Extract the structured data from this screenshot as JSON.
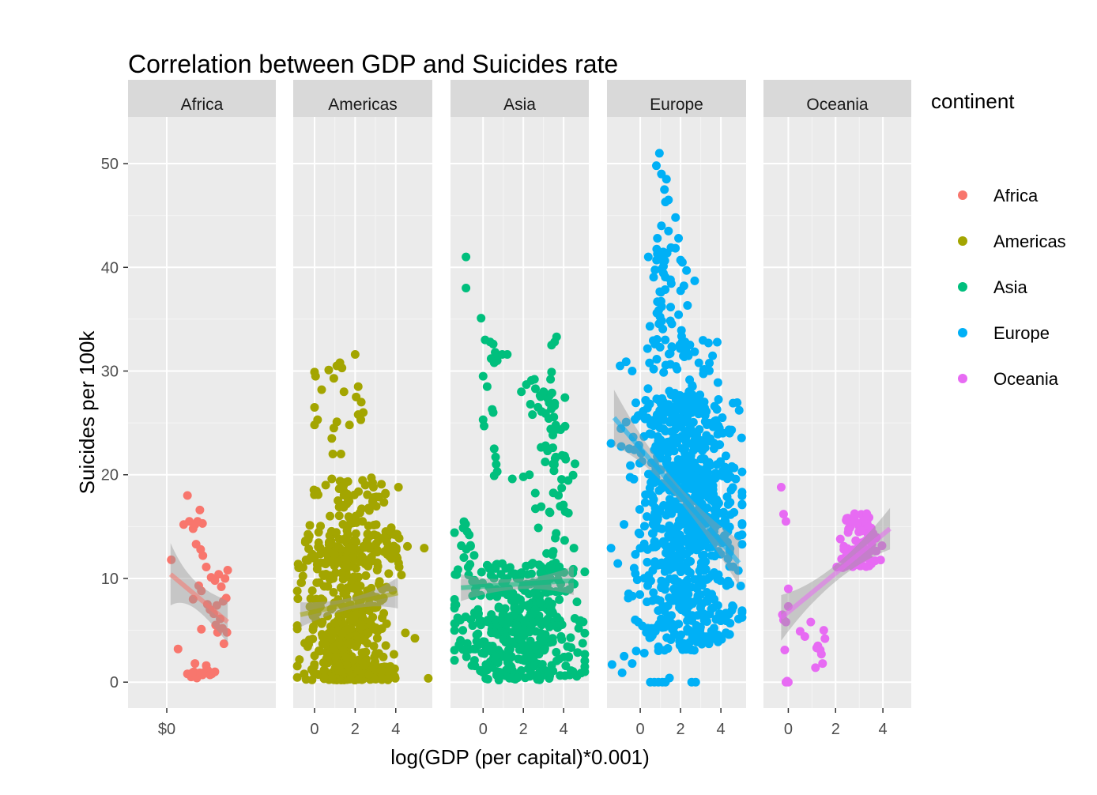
{
  "chart_data": {
    "type": "scatter",
    "title": "Correlation between GDP and Suicides rate",
    "xlabel": "log(GDP (per capital)*0.001)",
    "ylabel": "Suicides per 100k",
    "ylim": [
      -2.5,
      54.5
    ],
    "y_ticks": [
      0,
      10,
      20,
      30,
      40,
      50
    ],
    "grid": true,
    "legend": {
      "title": "continent",
      "position": "right"
    },
    "panels": [
      {
        "name": "Africa",
        "color": "#F8766D",
        "xlim": [
          -1.03,
          2.9
        ],
        "x_ticks": [
          {
            "value": 0,
            "label": "$0"
          }
        ],
        "trend": {
          "x": [
            0.1,
            1.62
          ],
          "y": [
            10.4,
            5.8
          ],
          "band_halfwidth_ends": [
            3.0,
            2.0
          ],
          "band_halfwidth_mid": 1.3
        },
        "points": [
          [
            0.12,
            11.8
          ],
          [
            0.3,
            3.2
          ],
          [
            0.45,
            15.2
          ],
          [
            0.55,
            18.0
          ],
          [
            0.6,
            15.5
          ],
          [
            0.7,
            14.8
          ],
          [
            0.75,
            15.2
          ],
          [
            0.82,
            15.5
          ],
          [
            0.88,
            16.6
          ],
          [
            0.95,
            15.3
          ],
          [
            0.78,
            13.3
          ],
          [
            0.9,
            12.8
          ],
          [
            0.96,
            12.2
          ],
          [
            0.85,
            9.3
          ],
          [
            0.92,
            8.8
          ],
          [
            0.7,
            8.0
          ],
          [
            1.05,
            11.1
          ],
          [
            1.18,
            10.1
          ],
          [
            1.28,
            9.8
          ],
          [
            1.38,
            10.4
          ],
          [
            1.45,
            9.2
          ],
          [
            1.55,
            10.0
          ],
          [
            1.62,
            10.8
          ],
          [
            1.08,
            7.5
          ],
          [
            1.15,
            7.0
          ],
          [
            1.25,
            6.6
          ],
          [
            1.33,
            7.4
          ],
          [
            1.42,
            6.1
          ],
          [
            1.5,
            7.8
          ],
          [
            1.58,
            8.1
          ],
          [
            1.3,
            5.5
          ],
          [
            1.48,
            5.2
          ],
          [
            1.6,
            4.8
          ],
          [
            1.52,
            3.7
          ],
          [
            0.92,
            5.1
          ],
          [
            1.35,
            4.8
          ],
          [
            0.55,
            0.8
          ],
          [
            0.65,
            0.5
          ],
          [
            0.72,
            1.0
          ],
          [
            0.8,
            0.4
          ],
          [
            0.88,
            0.9
          ],
          [
            0.95,
            0.7
          ],
          [
            1.02,
            1.0
          ],
          [
            1.1,
            1.1
          ],
          [
            1.2,
            0.8
          ],
          [
            1.28,
            1.0
          ],
          [
            0.75,
            1.8
          ],
          [
            1.05,
            1.6
          ],
          [
            0.68,
            0.9
          ],
          [
            1.15,
            0.7
          ]
        ]
      },
      {
        "name": "Americas",
        "color": "#A3A500",
        "xlim": [
          -1.05,
          5.8
        ],
        "x_ticks": [
          {
            "value": 0,
            "label": "0"
          },
          {
            "value": 2,
            "label": "2"
          },
          {
            "value": 4,
            "label": "4"
          }
        ],
        "trend": {
          "x": [
            -0.7,
            4.1
          ],
          "y": [
            6.5,
            8.6
          ],
          "band_halfwidth_ends": [
            1.2,
            1.5
          ],
          "band_halfwidth_mid": 0.55
        },
        "cloud": [
          {
            "cx": 1.8,
            "sx": 1.05,
            "y0": 0.2,
            "y1": 13.5,
            "n": 470,
            "skew": 1.6
          },
          {
            "cx": 1.8,
            "sx": 1.1,
            "y0": 11.5,
            "y1": 19.5,
            "n": 110,
            "skew": 1.0
          },
          {
            "cx": -0.2,
            "sx": 0.5,
            "y0": 5.0,
            "y1": 16.0,
            "n": 30,
            "skew": 1.0
          },
          {
            "cx": 4.0,
            "sx": 0.15,
            "y0": 11.0,
            "y1": 15.0,
            "n": 20,
            "skew": 1.0
          }
        ],
        "points": [
          [
            0.0,
            29.9
          ],
          [
            0.05,
            29.5
          ],
          [
            0.0,
            26.5
          ],
          [
            0.0,
            24.8
          ],
          [
            0.15,
            25.3
          ],
          [
            0.35,
            28.2
          ],
          [
            0.7,
            30.1
          ],
          [
            0.95,
            29.3
          ],
          [
            1.1,
            30.5
          ],
          [
            1.25,
            30.8
          ],
          [
            1.35,
            30.3
          ],
          [
            1.45,
            28.0
          ],
          [
            2.0,
            31.6
          ],
          [
            2.15,
            28.5
          ],
          [
            2.05,
            27.5
          ],
          [
            2.3,
            27.0
          ],
          [
            2.4,
            26.0
          ],
          [
            2.28,
            25.3
          ],
          [
            2.15,
            25.8
          ],
          [
            1.72,
            24.8
          ],
          [
            1.1,
            25.1
          ],
          [
            0.95,
            24.5
          ],
          [
            0.85,
            23.5
          ],
          [
            0.9,
            22.0
          ],
          [
            1.3,
            22.0
          ],
          [
            0.55,
            19.0
          ],
          [
            0.85,
            19.6
          ],
          [
            2.8,
            19.7
          ],
          [
            2.9,
            18.8
          ],
          [
            2.5,
            19.0
          ]
        ]
      },
      {
        "name": "Asia",
        "color": "#00BF7D",
        "xlim": [
          -1.62,
          5.25
        ],
        "x_ticks": [
          {
            "value": 0,
            "label": "0"
          },
          {
            "value": 2,
            "label": "2"
          },
          {
            "value": 4,
            "label": "4"
          }
        ],
        "trend": {
          "x": [
            -1.1,
            4.5
          ],
          "y": [
            9.1,
            9.8
          ],
          "band_halfwidth_ends": [
            1.3,
            1.4
          ],
          "band_halfwidth_mid": 0.5
        },
        "cloud": [
          {
            "cx": 1.7,
            "sx": 1.6,
            "y0": 0.2,
            "y1": 6.0,
            "n": 260,
            "skew": 1.0
          },
          {
            "cx": 1.7,
            "sx": 1.6,
            "y0": 5.5,
            "y1": 11.5,
            "n": 200,
            "skew": 1.0
          },
          {
            "cx": 3.6,
            "sx": 0.45,
            "y0": 11.5,
            "y1": 28.0,
            "n": 55,
            "skew": 1.0
          },
          {
            "cx": -0.9,
            "sx": 0.35,
            "y0": 12.0,
            "y1": 16.0,
            "n": 12,
            "skew": 1.0
          }
        ],
        "points": [
          [
            -0.85,
            41.0
          ],
          [
            -0.85,
            38.0
          ],
          [
            -0.1,
            35.1
          ],
          [
            0.1,
            33.0
          ],
          [
            0.35,
            32.8
          ],
          [
            0.5,
            32.6
          ],
          [
            0.6,
            31.8
          ],
          [
            0.75,
            31.5
          ],
          [
            0.95,
            31.6
          ],
          [
            1.2,
            31.6
          ],
          [
            0.4,
            31.2
          ],
          [
            0.55,
            30.8
          ],
          [
            0.7,
            31.0
          ],
          [
            0.0,
            29.5
          ],
          [
            0.2,
            28.5
          ],
          [
            0.45,
            26.3
          ],
          [
            0.5,
            26.0
          ],
          [
            0.0,
            25.3
          ],
          [
            0.05,
            24.7
          ],
          [
            0.55,
            22.5
          ],
          [
            0.62,
            21.7
          ],
          [
            0.65,
            21.0
          ],
          [
            0.7,
            20.3
          ],
          [
            0.55,
            19.9
          ],
          [
            1.45,
            19.6
          ],
          [
            1.9,
            28.0
          ],
          [
            2.15,
            28.7
          ],
          [
            2.4,
            29.1
          ],
          [
            2.55,
            29.2
          ],
          [
            2.6,
            28.3
          ],
          [
            3.0,
            28.0
          ],
          [
            2.35,
            26.8
          ],
          [
            2.45,
            25.8
          ],
          [
            3.4,
            32.5
          ],
          [
            3.55,
            32.8
          ],
          [
            3.65,
            33.3
          ],
          [
            3.4,
            29.9
          ],
          [
            3.35,
            29.2
          ],
          [
            2.9,
            26.1
          ],
          [
            3.1,
            25.9
          ],
          [
            2.0,
            19.8
          ],
          [
            2.3,
            20.0
          ],
          [
            3.1,
            22.8
          ],
          [
            3.2,
            22.3
          ],
          [
            4.05,
            21.8
          ],
          [
            4.1,
            21.5
          ]
        ]
      },
      {
        "name": "Europe",
        "color": "#00B0F6",
        "xlim": [
          -1.65,
          5.25
        ],
        "x_ticks": [
          {
            "value": 0,
            "label": "0"
          },
          {
            "value": 2,
            "label": "2"
          },
          {
            "value": 4,
            "label": "4"
          }
        ],
        "trend": {
          "x": [
            -1.3,
            4.9
          ],
          "y": [
            25.5,
            11.5
          ],
          "band_halfwidth_ends": [
            2.7,
            2.2
          ],
          "band_halfwidth_mid": 0.7
        },
        "cloud": [
          {
            "cx": 2.6,
            "sx": 1.1,
            "y0": 3.0,
            "y1": 27.0,
            "n": 560,
            "skew": 1.0
          },
          {
            "cx": 2.8,
            "sx": 0.9,
            "y0": 13.0,
            "y1": 21.0,
            "n": 170,
            "skew": 1.0
          },
          {
            "cx": 0.8,
            "sx": 0.75,
            "y0": 5.0,
            "y1": 28.0,
            "n": 140,
            "skew": 1.0
          },
          {
            "cx": 2.6,
            "sx": 1.0,
            "y0": 26.0,
            "y1": 33.0,
            "n": 55,
            "skew": 1.0
          },
          {
            "cx": 1.3,
            "sx": 0.5,
            "y0": 30.0,
            "y1": 42.0,
            "n": 55,
            "skew": 1.0
          }
        ],
        "points": [
          [
            0.95,
            51.0
          ],
          [
            0.8,
            49.8
          ],
          [
            1.05,
            49.0
          ],
          [
            1.3,
            48.5
          ],
          [
            1.2,
            47.5
          ],
          [
            1.4,
            46.5
          ],
          [
            1.25,
            46.3
          ],
          [
            1.4,
            43.5
          ],
          [
            1.75,
            44.8
          ],
          [
            1.05,
            44.0
          ],
          [
            0.85,
            42.8
          ],
          [
            1.9,
            42.8
          ],
          [
            2.0,
            40.7
          ],
          [
            0.4,
            41.0
          ],
          [
            0.85,
            41.3
          ],
          [
            1.0,
            41.1
          ],
          [
            2.7,
            38.7
          ],
          [
            1.5,
            38.8
          ],
          [
            -1.0,
            30.5
          ],
          [
            -0.7,
            30.9
          ],
          [
            -0.4,
            30.0
          ],
          [
            -1.4,
            1.7
          ],
          [
            -0.8,
            2.5
          ],
          [
            -0.2,
            3.0
          ],
          [
            0.2,
            2.8
          ],
          [
            -0.4,
            1.8
          ],
          [
            -0.9,
            0.9
          ],
          [
            0.5,
            0.0
          ],
          [
            0.7,
            0.0
          ],
          [
            0.9,
            0.0
          ],
          [
            1.1,
            0.0
          ],
          [
            1.25,
            0.0
          ],
          [
            1.45,
            0.4
          ],
          [
            2.55,
            0.0
          ],
          [
            2.75,
            0.0
          ],
          [
            -0.1,
            5.8
          ],
          [
            0.3,
            4.8
          ],
          [
            0.6,
            4.5
          ],
          [
            0.75,
            4.9
          ]
        ]
      },
      {
        "name": "Oceania",
        "color": "#E76BF3",
        "xlim": [
          -1.05,
          5.2
        ],
        "x_ticks": [
          {
            "value": 0,
            "label": "0"
          },
          {
            "value": 2,
            "label": "2"
          },
          {
            "value": 4,
            "label": "4"
          }
        ],
        "trend": {
          "x": [
            -0.3,
            4.3
          ],
          "y": [
            6.2,
            14.8
          ],
          "band_halfwidth_ends": [
            2.2,
            2.0
          ],
          "band_halfwidth_mid": 0.8
        },
        "cloud": [
          {
            "cx": 3.1,
            "sx": 0.42,
            "y0": 11.0,
            "y1": 16.3,
            "n": 85,
            "skew": 1.0
          }
        ],
        "points": [
          [
            -0.3,
            18.8
          ],
          [
            -0.2,
            16.2
          ],
          [
            -0.1,
            15.5
          ],
          [
            -0.25,
            6.5
          ],
          [
            0.0,
            9.0
          ],
          [
            -0.2,
            6.0
          ],
          [
            -0.1,
            5.8
          ],
          [
            0.0,
            7.3
          ],
          [
            -0.15,
            3.1
          ],
          [
            -0.1,
            0.0
          ],
          [
            0.0,
            0.0
          ],
          [
            -0.05,
            0.1
          ],
          [
            0.95,
            5.8
          ],
          [
            1.2,
            3.3
          ],
          [
            1.25,
            3.5
          ],
          [
            1.35,
            3.1
          ],
          [
            1.5,
            5.0
          ],
          [
            1.55,
            4.2
          ],
          [
            1.4,
            2.7
          ],
          [
            1.45,
            1.8
          ],
          [
            1.15,
            1.4
          ],
          [
            0.5,
            4.9
          ],
          [
            0.7,
            4.4
          ],
          [
            2.05,
            11.1
          ],
          [
            2.2,
            13.8
          ],
          [
            2.35,
            12.8
          ]
        ]
      }
    ]
  }
}
